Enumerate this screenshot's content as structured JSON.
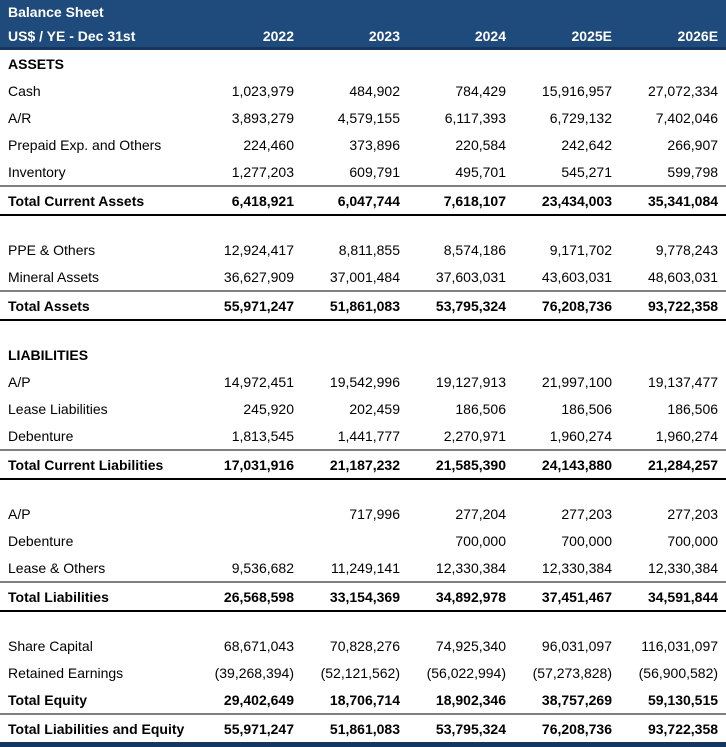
{
  "header": {
    "title": "Balance Sheet",
    "unit_label": "US$ / YE - Dec 31st",
    "columns": [
      "2022",
      "2023",
      "2024",
      "2025E",
      "2026E"
    ]
  },
  "colors": {
    "header_bg": "#1E4A7C",
    "header_text": "#FFFFFF",
    "accent_border": "#16365D",
    "total_top_border": "#808080",
    "total_bottom_border": "#000000"
  },
  "rows": [
    {
      "type": "section",
      "label": "ASSETS",
      "values": [
        "",
        "",
        "",
        "",
        ""
      ]
    },
    {
      "type": "item",
      "label": "Cash",
      "values": [
        "1,023,979",
        "484,902",
        "784,429",
        "15,916,957",
        "27,072,334"
      ]
    },
    {
      "type": "item",
      "label": "A/R",
      "values": [
        "3,893,279",
        "4,579,155",
        "6,117,393",
        "6,729,132",
        "7,402,046"
      ]
    },
    {
      "type": "item",
      "label": "Prepaid Exp. and Others",
      "values": [
        "224,460",
        "373,896",
        "220,584",
        "242,642",
        "266,907"
      ]
    },
    {
      "type": "item",
      "label": "Inventory",
      "values": [
        "1,277,203",
        "609,791",
        "495,701",
        "545,271",
        "599,798"
      ]
    },
    {
      "type": "total",
      "label": "Total Current Assets",
      "values": [
        "6,418,921",
        "6,047,744",
        "7,618,107",
        "23,434,003",
        "35,341,084"
      ]
    },
    {
      "type": "blank",
      "label": "",
      "values": [
        "",
        "",
        "",
        "",
        ""
      ]
    },
    {
      "type": "item",
      "label": "PPE & Others",
      "values": [
        "12,924,417",
        "8,811,855",
        "8,574,186",
        "9,171,702",
        "9,778,243"
      ]
    },
    {
      "type": "item",
      "label": "Mineral Assets",
      "values": [
        "36,627,909",
        "37,001,484",
        "37,603,031",
        "43,603,031",
        "48,603,031"
      ]
    },
    {
      "type": "total",
      "label": "Total Assets",
      "values": [
        "55,971,247",
        "51,861,083",
        "53,795,324",
        "76,208,736",
        "93,722,358"
      ]
    },
    {
      "type": "blank",
      "label": "",
      "values": [
        "",
        "",
        "",
        "",
        ""
      ]
    },
    {
      "type": "section",
      "label": "LIABILITIES",
      "values": [
        "",
        "",
        "",
        "",
        ""
      ]
    },
    {
      "type": "item",
      "label": "A/P",
      "values": [
        "14,972,451",
        "19,542,996",
        "19,127,913",
        "21,997,100",
        "19,137,477"
      ]
    },
    {
      "type": "item",
      "label": "Lease Liabilities",
      "values": [
        "245,920",
        "202,459",
        "186,506",
        "186,506",
        "186,506"
      ]
    },
    {
      "type": "item",
      "label": "Debenture",
      "values": [
        "1,813,545",
        "1,441,777",
        "2,270,971",
        "1,960,274",
        "1,960,274"
      ]
    },
    {
      "type": "total",
      "label": "Total Current Liabilities",
      "values": [
        "17,031,916",
        "21,187,232",
        "21,585,390",
        "24,143,880",
        "21,284,257"
      ]
    },
    {
      "type": "blank",
      "label": "",
      "values": [
        "",
        "",
        "",
        "",
        ""
      ]
    },
    {
      "type": "item",
      "label": "A/P",
      "values": [
        "",
        "717,996",
        "277,204",
        "277,203",
        "277,203"
      ]
    },
    {
      "type": "item",
      "label": "Debenture",
      "values": [
        "",
        "",
        "700,000",
        "700,000",
        "700,000"
      ]
    },
    {
      "type": "item",
      "label": "Lease & Others",
      "values": [
        "9,536,682",
        "11,249,141",
        "12,330,384",
        "12,330,384",
        "12,330,384"
      ]
    },
    {
      "type": "total",
      "label": "Total Liabilities",
      "values": [
        "26,568,598",
        "33,154,369",
        "34,892,978",
        "37,451,467",
        "34,591,844"
      ]
    },
    {
      "type": "blank",
      "label": "",
      "values": [
        "",
        "",
        "",
        "",
        ""
      ]
    },
    {
      "type": "item",
      "label": "Share Capital",
      "values": [
        "68,671,043",
        "70,828,276",
        "74,925,340",
        "96,031,097",
        "116,031,097"
      ]
    },
    {
      "type": "item",
      "label": "Retained Earnings",
      "values": [
        "(39,268,394)",
        "(52,121,562)",
        "(56,022,994)",
        "(57,273,828)",
        "(56,900,582)"
      ]
    },
    {
      "type": "total-noborder",
      "label": "Total Equity",
      "values": [
        "29,402,649",
        "18,706,714",
        "18,902,346",
        "38,757,269",
        "59,130,515"
      ]
    },
    {
      "type": "grand",
      "label": "Total Liabilities and Equity",
      "values": [
        "55,971,247",
        "51,861,083",
        "53,795,324",
        "76,208,736",
        "93,722,358"
      ]
    }
  ]
}
